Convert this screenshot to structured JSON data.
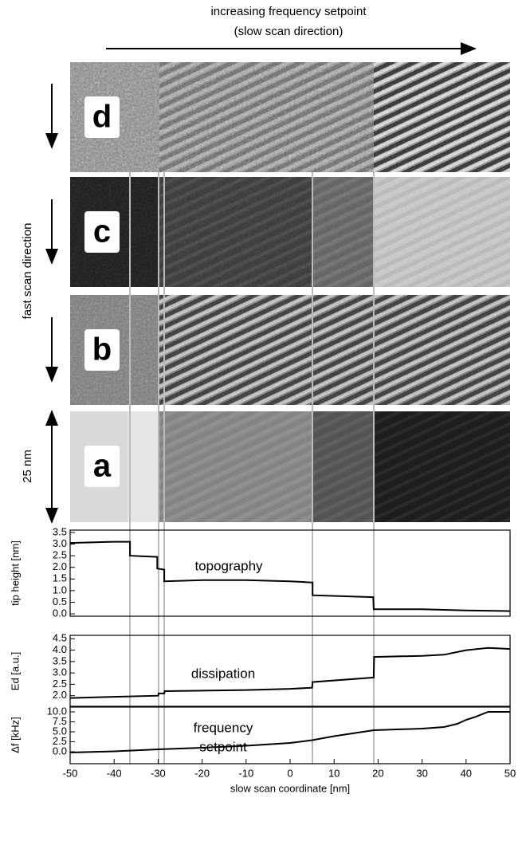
{
  "header": {
    "line1": "increasing frequency setpoint",
    "line2": "(slow scan direction)"
  },
  "side_label": "fast scan direction",
  "scale_label": "25 nm",
  "panels": [
    "d",
    "c",
    "b",
    "a"
  ],
  "chart_data": [
    {
      "type": "line",
      "ylabel": "tip height [nm]",
      "annotation": [
        "topography"
      ],
      "xlim": [
        -50,
        50
      ],
      "ylim": [
        -0.1,
        3.6
      ],
      "yticks": [
        {
          "value": 0,
          "label": "0.0"
        },
        0.5,
        {
          "value": 1,
          "label": "1.0"
        },
        1.5,
        {
          "value": 2,
          "label": "2.0"
        },
        2.5,
        {
          "value": 3,
          "label": "3.0"
        },
        3.5
      ],
      "series": [
        {
          "color": "#000000",
          "x": [
            -50,
            -40,
            -36.4,
            -36.4,
            -30.2,
            -30.2,
            -28.6,
            -28.6,
            -20,
            -10,
            0,
            5,
            5.1,
            5.1,
            18.9,
            19,
            30,
            40,
            50
          ],
          "values": [
            3.05,
            3.1,
            3.1,
            2.5,
            2.45,
            1.95,
            1.9,
            1.4,
            1.45,
            1.45,
            1.4,
            1.35,
            1.35,
            0.8,
            0.72,
            0.2,
            0.2,
            0.15,
            0.12
          ]
        }
      ]
    },
    {
      "type": "line",
      "ylabel": "Ed [a.u.]",
      "annotation": [
        "dissipation"
      ],
      "xlim": [
        -50,
        50
      ],
      "ylim": [
        1.5,
        4.65
      ],
      "yticks": [
        {
          "value": 2,
          "label": "2.0"
        },
        2.5,
        {
          "value": 3,
          "label": "3.0"
        },
        3.5,
        {
          "value": 4,
          "label": "4.0"
        },
        4.5
      ],
      "series": [
        {
          "color": "#000000",
          "x": [
            -50,
            -40,
            -30,
            -29.9,
            -28.6,
            -28.5,
            -10,
            0,
            5,
            5.1,
            19,
            19.1,
            30,
            35,
            40,
            45,
            50
          ],
          "values": [
            1.9,
            1.95,
            2.0,
            2.1,
            2.1,
            2.2,
            2.25,
            2.3,
            2.35,
            2.6,
            2.8,
            3.7,
            3.75,
            3.8,
            4.0,
            4.1,
            4.05
          ]
        }
      ]
    },
    {
      "type": "line",
      "ylabel": "Δf [kHz]",
      "annotation": [
        "frequency",
        "setpoint"
      ],
      "xlabel": "slow scan coordinate [nm]",
      "xlim": [
        -50,
        50
      ],
      "ylim": [
        -3,
        11.4
      ],
      "xticks": [
        -50,
        -40,
        -30,
        -20,
        -10,
        0,
        10,
        20,
        30,
        40,
        50
      ],
      "yticks": [
        {
          "value": 0,
          "label": "0.0"
        },
        2.5,
        {
          "value": 5,
          "label": "5.0"
        },
        7.5,
        {
          "value": 10,
          "label": "10.0"
        }
      ],
      "series": [
        {
          "color": "#000000",
          "x": [
            -50,
            -40,
            -30,
            -20,
            -10,
            0,
            5,
            10,
            19,
            30,
            35,
            38,
            40,
            42,
            45,
            50
          ],
          "values": [
            -0.2,
            0.1,
            0.6,
            1.0,
            1.5,
            2.2,
            2.9,
            3.9,
            5.4,
            5.8,
            6.2,
            7.0,
            8.0,
            8.7,
            10,
            10
          ]
        }
      ]
    }
  ]
}
